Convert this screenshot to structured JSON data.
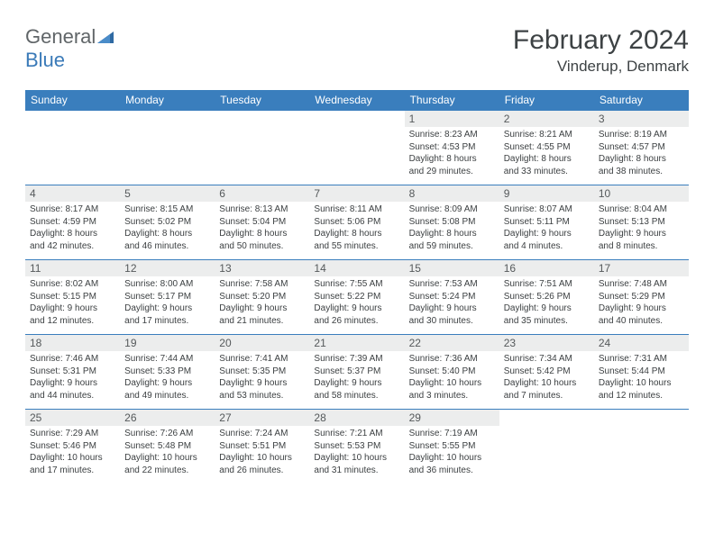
{
  "colors": {
    "header_bg": "#3a7ebd",
    "header_text": "#ffffff",
    "daynum_bg": "#eceded",
    "daynum_text": "#55595b",
    "body_text": "#3b3f41",
    "rule": "#3a7ebd",
    "logo_gray": "#606568",
    "logo_blue": "#3a7ab8",
    "title_text": "#3d4244"
  },
  "logo": {
    "part1": "General",
    "part2": "Blue"
  },
  "title": "February 2024",
  "location": "Vinderup, Denmark",
  "weekdays": [
    "Sunday",
    "Monday",
    "Tuesday",
    "Wednesday",
    "Thursday",
    "Friday",
    "Saturday"
  ],
  "weeks": [
    [
      null,
      null,
      null,
      null,
      {
        "num": "1",
        "sunrise": "8:23 AM",
        "sunset": "4:53 PM",
        "dl1": "Daylight: 8 hours",
        "dl2": "and 29 minutes."
      },
      {
        "num": "2",
        "sunrise": "8:21 AM",
        "sunset": "4:55 PM",
        "dl1": "Daylight: 8 hours",
        "dl2": "and 33 minutes."
      },
      {
        "num": "3",
        "sunrise": "8:19 AM",
        "sunset": "4:57 PM",
        "dl1": "Daylight: 8 hours",
        "dl2": "and 38 minutes."
      }
    ],
    [
      {
        "num": "4",
        "sunrise": "8:17 AM",
        "sunset": "4:59 PM",
        "dl1": "Daylight: 8 hours",
        "dl2": "and 42 minutes."
      },
      {
        "num": "5",
        "sunrise": "8:15 AM",
        "sunset": "5:02 PM",
        "dl1": "Daylight: 8 hours",
        "dl2": "and 46 minutes."
      },
      {
        "num": "6",
        "sunrise": "8:13 AM",
        "sunset": "5:04 PM",
        "dl1": "Daylight: 8 hours",
        "dl2": "and 50 minutes."
      },
      {
        "num": "7",
        "sunrise": "8:11 AM",
        "sunset": "5:06 PM",
        "dl1": "Daylight: 8 hours",
        "dl2": "and 55 minutes."
      },
      {
        "num": "8",
        "sunrise": "8:09 AM",
        "sunset": "5:08 PM",
        "dl1": "Daylight: 8 hours",
        "dl2": "and 59 minutes."
      },
      {
        "num": "9",
        "sunrise": "8:07 AM",
        "sunset": "5:11 PM",
        "dl1": "Daylight: 9 hours",
        "dl2": "and 4 minutes."
      },
      {
        "num": "10",
        "sunrise": "8:04 AM",
        "sunset": "5:13 PM",
        "dl1": "Daylight: 9 hours",
        "dl2": "and 8 minutes."
      }
    ],
    [
      {
        "num": "11",
        "sunrise": "8:02 AM",
        "sunset": "5:15 PM",
        "dl1": "Daylight: 9 hours",
        "dl2": "and 12 minutes."
      },
      {
        "num": "12",
        "sunrise": "8:00 AM",
        "sunset": "5:17 PM",
        "dl1": "Daylight: 9 hours",
        "dl2": "and 17 minutes."
      },
      {
        "num": "13",
        "sunrise": "7:58 AM",
        "sunset": "5:20 PM",
        "dl1": "Daylight: 9 hours",
        "dl2": "and 21 minutes."
      },
      {
        "num": "14",
        "sunrise": "7:55 AM",
        "sunset": "5:22 PM",
        "dl1": "Daylight: 9 hours",
        "dl2": "and 26 minutes."
      },
      {
        "num": "15",
        "sunrise": "7:53 AM",
        "sunset": "5:24 PM",
        "dl1": "Daylight: 9 hours",
        "dl2": "and 30 minutes."
      },
      {
        "num": "16",
        "sunrise": "7:51 AM",
        "sunset": "5:26 PM",
        "dl1": "Daylight: 9 hours",
        "dl2": "and 35 minutes."
      },
      {
        "num": "17",
        "sunrise": "7:48 AM",
        "sunset": "5:29 PM",
        "dl1": "Daylight: 9 hours",
        "dl2": "and 40 minutes."
      }
    ],
    [
      {
        "num": "18",
        "sunrise": "7:46 AM",
        "sunset": "5:31 PM",
        "dl1": "Daylight: 9 hours",
        "dl2": "and 44 minutes."
      },
      {
        "num": "19",
        "sunrise": "7:44 AM",
        "sunset": "5:33 PM",
        "dl1": "Daylight: 9 hours",
        "dl2": "and 49 minutes."
      },
      {
        "num": "20",
        "sunrise": "7:41 AM",
        "sunset": "5:35 PM",
        "dl1": "Daylight: 9 hours",
        "dl2": "and 53 minutes."
      },
      {
        "num": "21",
        "sunrise": "7:39 AM",
        "sunset": "5:37 PM",
        "dl1": "Daylight: 9 hours",
        "dl2": "and 58 minutes."
      },
      {
        "num": "22",
        "sunrise": "7:36 AM",
        "sunset": "5:40 PM",
        "dl1": "Daylight: 10 hours",
        "dl2": "and 3 minutes."
      },
      {
        "num": "23",
        "sunrise": "7:34 AM",
        "sunset": "5:42 PM",
        "dl1": "Daylight: 10 hours",
        "dl2": "and 7 minutes."
      },
      {
        "num": "24",
        "sunrise": "7:31 AM",
        "sunset": "5:44 PM",
        "dl1": "Daylight: 10 hours",
        "dl2": "and 12 minutes."
      }
    ],
    [
      {
        "num": "25",
        "sunrise": "7:29 AM",
        "sunset": "5:46 PM",
        "dl1": "Daylight: 10 hours",
        "dl2": "and 17 minutes."
      },
      {
        "num": "26",
        "sunrise": "7:26 AM",
        "sunset": "5:48 PM",
        "dl1": "Daylight: 10 hours",
        "dl2": "and 22 minutes."
      },
      {
        "num": "27",
        "sunrise": "7:24 AM",
        "sunset": "5:51 PM",
        "dl1": "Daylight: 10 hours",
        "dl2": "and 26 minutes."
      },
      {
        "num": "28",
        "sunrise": "7:21 AM",
        "sunset": "5:53 PM",
        "dl1": "Daylight: 10 hours",
        "dl2": "and 31 minutes."
      },
      {
        "num": "29",
        "sunrise": "7:19 AM",
        "sunset": "5:55 PM",
        "dl1": "Daylight: 10 hours",
        "dl2": "and 36 minutes."
      },
      null,
      null
    ]
  ]
}
